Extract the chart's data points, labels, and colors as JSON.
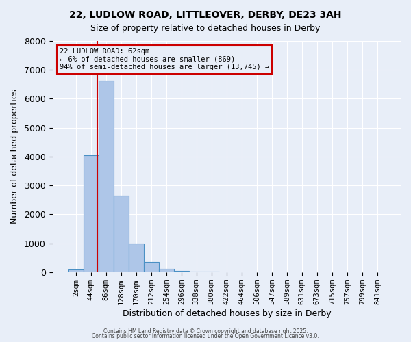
{
  "title_line1": "22, LUDLOW ROAD, LITTLEOVER, DERBY, DE23 3AH",
  "title_line2": "Size of property relative to detached houses in Derby",
  "xlabel": "Distribution of detached houses by size in Derby",
  "ylabel": "Number of detached properties",
  "bar_values": [
    80,
    4050,
    6620,
    2650,
    990,
    340,
    120,
    50,
    20,
    10,
    5,
    5,
    0,
    0,
    0,
    0,
    0,
    0,
    0,
    0,
    0
  ],
  "bar_labels": [
    "2sqm",
    "44sqm",
    "86sqm",
    "128sqm",
    "170sqm",
    "212sqm",
    "254sqm",
    "296sqm",
    "338sqm",
    "380sqm",
    "422sqm",
    "464sqm",
    "506sqm",
    "547sqm",
    "589sqm",
    "631sqm",
    "673sqm",
    "715sqm",
    "757sqm",
    "799sqm",
    "841sqm"
  ],
  "bar_color": "#aec6e8",
  "bar_edge_color": "#4a90c4",
  "bar_width": 1.0,
  "ylim": [
    0,
    8000
  ],
  "yticks": [
    0,
    1000,
    2000,
    3000,
    4000,
    5000,
    6000,
    7000,
    8000
  ],
  "annotation_title": "22 LUDLOW ROAD: 62sqm",
  "annotation_line2": "← 6% of detached houses are smaller (869)",
  "annotation_line3": "94% of semi-detached houses are larger (13,745) →",
  "annotation_box_color": "#cc0000",
  "background_color": "#e8eef8",
  "grid_color": "#ffffff",
  "footnote1": "Contains HM Land Registry data © Crown copyright and database right 2025.",
  "footnote2": "Contains public sector information licensed under the Open Government Licence v3.0."
}
